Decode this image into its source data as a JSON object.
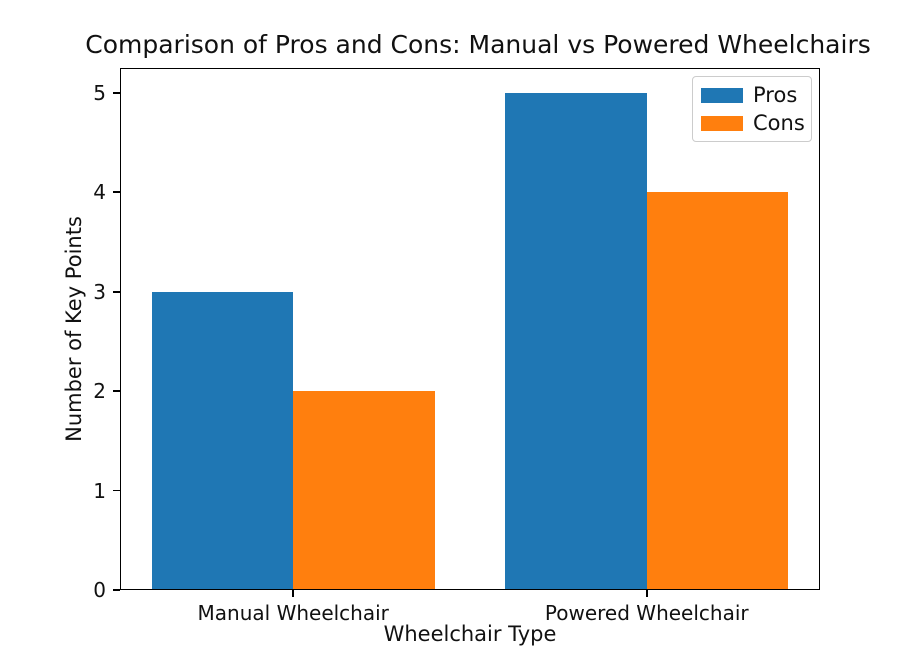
{
  "chart_data": {
    "type": "bar",
    "title": "Comparison of Pros and Cons: Manual vs Powered Wheelchairs",
    "xlabel": "Wheelchair Type",
    "ylabel": "Number of Key Points",
    "categories": [
      "Manual Wheelchair",
      "Powered Wheelchair"
    ],
    "series": [
      {
        "name": "Pros",
        "color": "#1f77b4",
        "values": [
          3,
          5
        ]
      },
      {
        "name": "Cons",
        "color": "#ff7f0e",
        "values": [
          2,
          4
        ]
      }
    ],
    "yticks": [
      0,
      1,
      2,
      3,
      4,
      5
    ],
    "ylim": [
      0,
      5.25
    ],
    "xlim": [
      -0.49,
      1.49
    ],
    "bar_width": 0.4,
    "grid": false,
    "legend": {
      "position": "upper right",
      "entries": [
        "Pros",
        "Cons"
      ]
    }
  },
  "colors": {
    "background": "#ffffff",
    "axis": "#000000",
    "text": "#111111",
    "legend_border": "#cccccc",
    "pros": "#1f77b4",
    "cons": "#ff7f0e"
  }
}
